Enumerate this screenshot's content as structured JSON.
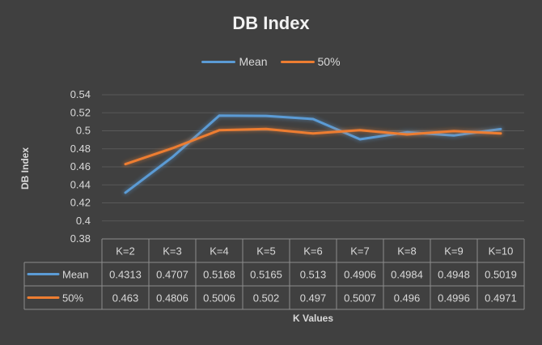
{
  "chart_data": {
    "type": "line",
    "title": "DB Index",
    "xlabel": "K Values",
    "ylabel": "DB Index",
    "ylim": [
      0.38,
      0.54
    ],
    "ytick_labels": [
      "0.38",
      "0.4",
      "0.42",
      "0.44",
      "0.46",
      "0.48",
      "0.5",
      "0.52",
      "0.54"
    ],
    "grid": true,
    "legend_position": "top",
    "data_table": true,
    "categories": [
      "K=2",
      "K=3",
      "K=4",
      "K=5",
      "K=6",
      "K=7",
      "K=8",
      "K=9",
      "K=10"
    ],
    "series": [
      {
        "name": "Mean",
        "color": "#5b9bd5",
        "values": [
          0.4313,
          0.4707,
          0.5168,
          0.5165,
          0.513,
          0.4906,
          0.4984,
          0.4948,
          0.5019
        ],
        "labels": [
          "0.4313",
          "0.4707",
          "0.5168",
          "0.5165",
          "0.513",
          "0.4906",
          "0.4984",
          "0.4948",
          "0.5019"
        ]
      },
      {
        "name": "50%",
        "color": "#ed7d31",
        "values": [
          0.463,
          0.4806,
          0.5006,
          0.502,
          0.497,
          0.5007,
          0.496,
          0.4996,
          0.4971
        ],
        "labels": [
          "0.463",
          "0.4806",
          "0.5006",
          "0.502",
          "0.497",
          "0.5007",
          "0.496",
          "0.4996",
          "0.4971"
        ]
      }
    ]
  }
}
